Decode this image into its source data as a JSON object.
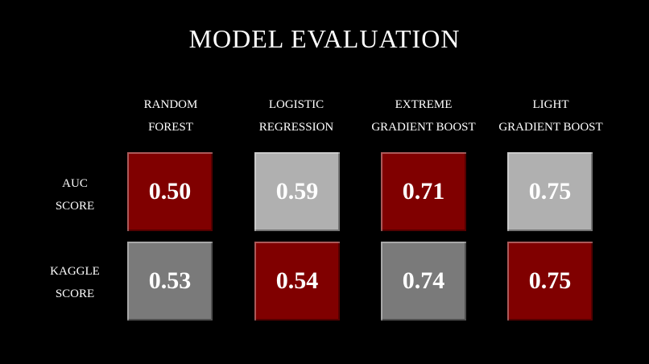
{
  "title": "MODEL EVALUATION",
  "columns": [
    {
      "line1": "RANDOM",
      "line2": "FOREST"
    },
    {
      "line1": "LOGISTIC",
      "line2": "REGRESSION"
    },
    {
      "line1": "EXTREME",
      "line2": "GRADIENT BOOST"
    },
    {
      "line1": "LIGHT",
      "line2": "GRADIENT BOOST"
    }
  ],
  "rows": [
    {
      "line1": "AUC",
      "line2": "SCORE",
      "values": [
        "0.50",
        "0.59",
        "0.71",
        "0.75"
      ]
    },
    {
      "line1": "KAGGLE",
      "line2": "SCORE",
      "values": [
        "0.53",
        "0.54",
        "0.74",
        "0.75"
      ]
    }
  ],
  "colors": {
    "background": "#000000",
    "red": "#800000",
    "light_gray": "#b0b0b0",
    "dark_gray": "#7a7a7a"
  }
}
